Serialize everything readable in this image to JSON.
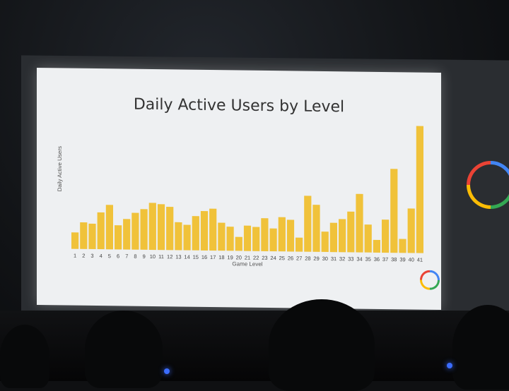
{
  "chart_data": {
    "type": "bar",
    "title": "Daily Active Users by Level",
    "xlabel": "Game Level",
    "ylabel": "Daily Active Users",
    "categories": [
      "1",
      "2",
      "3",
      "4",
      "5",
      "6",
      "7",
      "8",
      "9",
      "10",
      "11",
      "12",
      "13",
      "14",
      "15",
      "16",
      "17",
      "18",
      "19",
      "20",
      "21",
      "22",
      "23",
      "24",
      "25",
      "26",
      "27",
      "28",
      "29",
      "30",
      "31",
      "32",
      "33",
      "34",
      "35",
      "36",
      "37",
      "38",
      "39",
      "40",
      "41"
    ],
    "values": [
      13,
      21,
      20,
      29,
      35,
      19,
      24,
      29,
      32,
      37,
      36,
      34,
      22,
      20,
      27,
      31,
      33,
      22,
      19,
      11,
      20,
      19,
      26,
      18,
      27,
      25,
      11,
      44,
      37,
      16,
      23,
      26,
      32,
      46,
      22,
      10,
      26,
      66,
      11,
      35,
      100
    ],
    "ylim": [
      0,
      100
    ],
    "grid": false,
    "color": "#f0c23a"
  }
}
